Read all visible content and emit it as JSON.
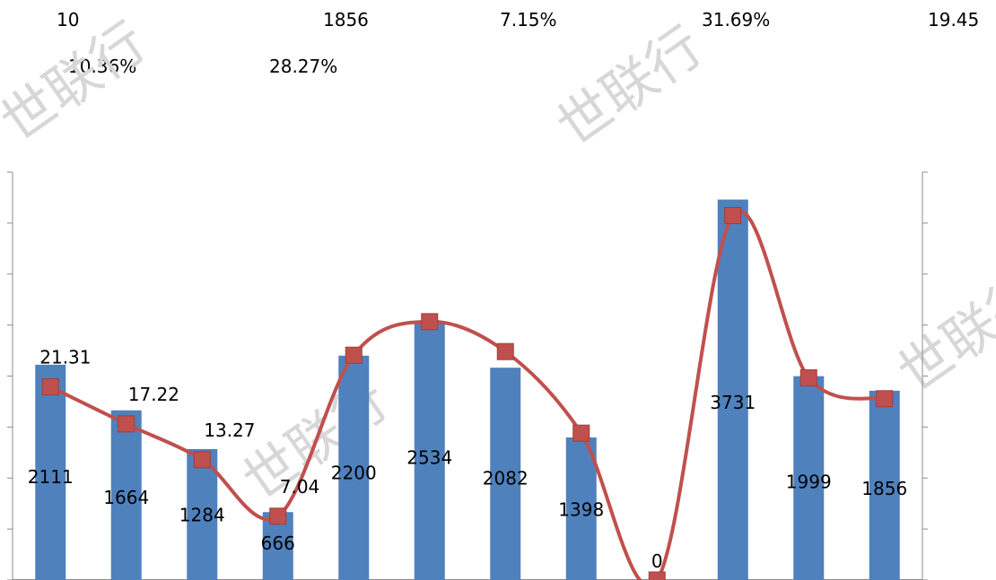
{
  "header": {
    "items": [
      "10",
      "1856",
      "7.15%",
      "31.69%",
      "19.45",
      "10.36%",
      "28.27%"
    ]
  },
  "watermark": {
    "text": "世联行"
  },
  "chart_data": {
    "type": "bar",
    "categories": [
      "",
      "",
      "",
      "",
      "",
      "",
      "",
      "",
      "",
      "",
      "",
      ""
    ],
    "series": [
      {
        "kind": "bar",
        "axis": "left",
        "values": [
          2111,
          1664,
          1284,
          666,
          2200,
          2534,
          2082,
          1398,
          0,
          3731,
          1999,
          1856
        ],
        "color": "#4f81bd"
      },
      {
        "kind": "line",
        "axis": "right",
        "smooth": true,
        "values": [
          21.31,
          17.22,
          13.27,
          7.04,
          24.8,
          28.5,
          25.2,
          16.2,
          0,
          40.2,
          22.3,
          20.0
        ],
        "labels": [
          "21.31",
          "17.22",
          "13.27",
          "7.04",
          "",
          "",
          "",
          "",
          "",
          "",
          "",
          ""
        ],
        "color": "#c0504d"
      }
    ],
    "ylim_left": [
      0,
      4000
    ],
    "ylim_right": [
      0,
      45
    ],
    "legend": "none",
    "grid": false
  }
}
